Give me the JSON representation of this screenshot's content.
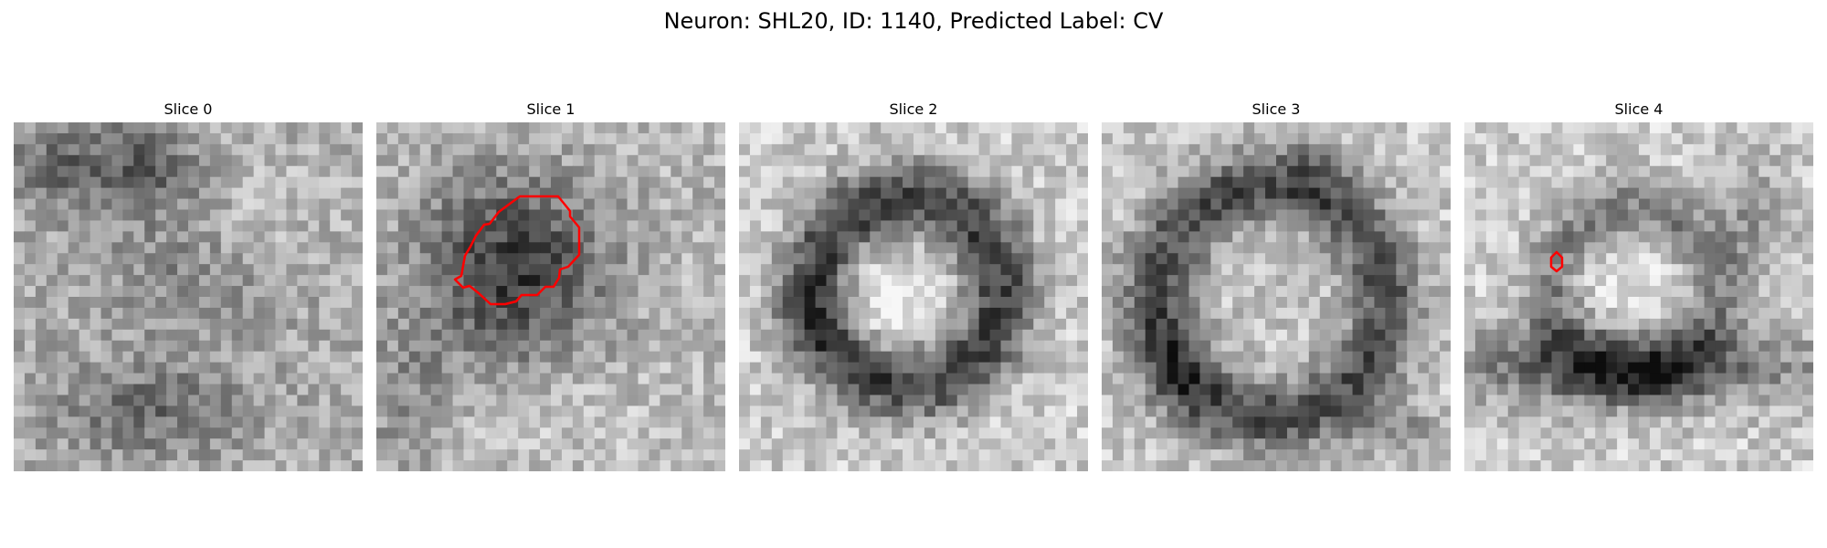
{
  "figure": {
    "title": "Neuron: SHL20, ID: 1140, Predicted Label: CV"
  },
  "panels": [
    {
      "title": "Slice 0",
      "contour": "none"
    },
    {
      "title": "Slice 1",
      "contour": "large-red-outline"
    },
    {
      "title": "Slice 2",
      "contour": "none"
    },
    {
      "title": "Slice 3",
      "contour": "none"
    },
    {
      "title": "Slice 4",
      "contour": "small-red-outline"
    }
  ],
  "colors": {
    "background": "#ffffff",
    "contour": "#ff0000"
  }
}
